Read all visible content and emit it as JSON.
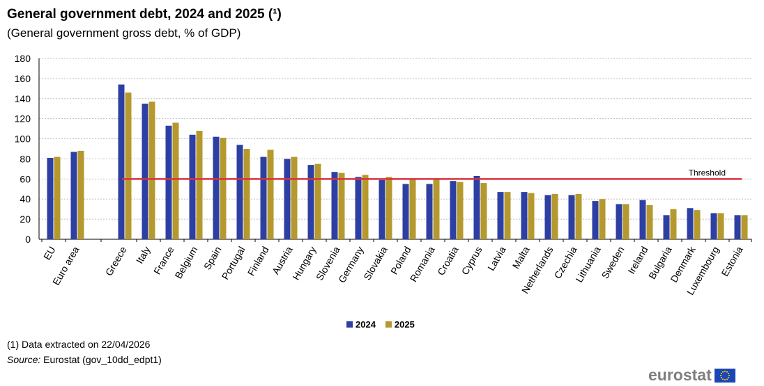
{
  "title": "General government debt, 2024 and 2025 (¹)",
  "subtitle": "(General government  gross debt, % of GDP)",
  "footnote": "(1) Data extracted  on 22/04/2026",
  "source_label": "Source:",
  "source_text": " Eurostat (gov_10dd_edpt1)",
  "logo_text": "eurostat",
  "colors": {
    "series_2024": "#2e3fa3",
    "series_2025": "#b5992e",
    "threshold": "#d9303e",
    "grid": "#bfbfbf"
  },
  "chart_data": {
    "type": "bar",
    "title": "General government debt, 2024 and 2025 (¹)",
    "ylim": [
      0,
      180
    ],
    "yticks": [
      0,
      20,
      40,
      60,
      80,
      100,
      120,
      140,
      160,
      180
    ],
    "grid": true,
    "legend_position": "bottom-center",
    "categories": [
      "EU",
      "Euro area",
      "Greece",
      "Italy",
      "France",
      "Belgium",
      "Spain",
      "Portugal",
      "Finland",
      "Austria",
      "Hungary",
      "Slovenia",
      "Germany",
      "Slovakia",
      "Poland",
      "Romania",
      "Croatia",
      "Cyprus",
      "Latvia",
      "Malta",
      "Netherlands",
      "Czechia",
      "Lithuania",
      "Sweden",
      "Ireland",
      "Bulgaria",
      "Denmark",
      "Luxembourg",
      "Estonia"
    ],
    "series": [
      {
        "name": "2024",
        "values": [
          81,
          87,
          154,
          135,
          113,
          104,
          102,
          94,
          82,
          80,
          74,
          67,
          62,
          59,
          55,
          55,
          58,
          63,
          47,
          47,
          44,
          44,
          38,
          35,
          39,
          24,
          31,
          26,
          24
        ]
      },
      {
        "name": "2025",
        "values": [
          82,
          88,
          146,
          137,
          116,
          108,
          101,
          90,
          89,
          82,
          75,
          66,
          64,
          62,
          60,
          60,
          57,
          56,
          47,
          46,
          45,
          45,
          40,
          35,
          34,
          30,
          29,
          26,
          24
        ]
      }
    ],
    "threshold": {
      "label": "Threshold",
      "value": 60
    }
  }
}
